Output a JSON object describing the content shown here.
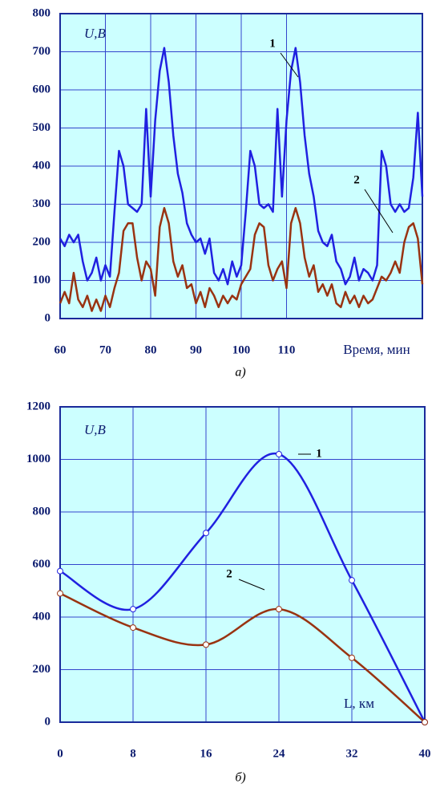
{
  "chart_data": [
    {
      "type": "line",
      "y_label": "U,В",
      "x_label": "Время, мин",
      "caption": "а)",
      "x": [
        60,
        61,
        62,
        63,
        64,
        65,
        66,
        67,
        68,
        69,
        70,
        71,
        72,
        73,
        74,
        75,
        76,
        77,
        78,
        79,
        80,
        81,
        82,
        83,
        84,
        85,
        86,
        87,
        88,
        89,
        90,
        91,
        92,
        93,
        94,
        95,
        96,
        97,
        98,
        99,
        100,
        101,
        102,
        103,
        104,
        105,
        106,
        107,
        108,
        109,
        110,
        111,
        112,
        113,
        114,
        115,
        116,
        117,
        118,
        119,
        120,
        121,
        122,
        123,
        124,
        125,
        126,
        127,
        128,
        129,
        130,
        131,
        132,
        133,
        134,
        135,
        136,
        137,
        138,
        139,
        140
      ],
      "series": [
        {
          "name": "1",
          "color": "#2020e0",
          "values": [
            210,
            190,
            220,
            200,
            220,
            150,
            100,
            120,
            160,
            100,
            140,
            110,
            280,
            440,
            400,
            300,
            290,
            280,
            300,
            550,
            320,
            520,
            650,
            710,
            620,
            480,
            380,
            330,
            250,
            220,
            200,
            210,
            170,
            210,
            120,
            100,
            130,
            90,
            150,
            110,
            140,
            280,
            440,
            400,
            300,
            290,
            300,
            280,
            550,
            320,
            520,
            650,
            710,
            620,
            480,
            380,
            320,
            230,
            200,
            190,
            220,
            150,
            130,
            90,
            110,
            160,
            100,
            130,
            120,
            100,
            140,
            440,
            400,
            300,
            280,
            300,
            280,
            290,
            370,
            540,
            320
          ]
        },
        {
          "name": "2",
          "color": "#993311",
          "values": [
            40,
            70,
            40,
            120,
            50,
            30,
            60,
            20,
            50,
            20,
            60,
            30,
            80,
            120,
            230,
            250,
            250,
            160,
            100,
            150,
            130,
            60,
            240,
            290,
            250,
            150,
            110,
            140,
            80,
            90,
            40,
            70,
            30,
            80,
            60,
            30,
            60,
            40,
            60,
            50,
            90,
            110,
            130,
            220,
            250,
            240,
            140,
            100,
            130,
            150,
            80,
            250,
            290,
            250,
            160,
            110,
            140,
            70,
            90,
            60,
            90,
            40,
            30,
            70,
            40,
            60,
            30,
            60,
            40,
            50,
            80,
            110,
            100,
            120,
            150,
            120,
            200,
            240,
            250,
            210,
            90
          ]
        }
      ],
      "xlim": [
        60,
        140
      ],
      "xticks": [
        60,
        70,
        80,
        90,
        100,
        110
      ],
      "ylim": [
        0,
        800
      ],
      "yticks": [
        0,
        100,
        200,
        300,
        400,
        500,
        600,
        700,
        800
      ],
      "grid": true,
      "markers": false
    },
    {
      "type": "line",
      "y_label": "U,В",
      "x_label": "L, км",
      "caption": "б)",
      "x": [
        0,
        8,
        16,
        24,
        32,
        40
      ],
      "series": [
        {
          "name": "1",
          "color": "#2020e0",
          "values": [
            575,
            430,
            720,
            1020,
            540,
            0
          ]
        },
        {
          "name": "2",
          "color": "#993311",
          "values": [
            490,
            360,
            295,
            430,
            245,
            0
          ]
        }
      ],
      "xlim": [
        0,
        40
      ],
      "xticks": [
        0,
        8,
        16,
        24,
        32,
        40
      ],
      "ylim": [
        0,
        1200
      ],
      "yticks": [
        0,
        200,
        400,
        600,
        800,
        1000,
        1200
      ],
      "grid": true,
      "markers": true
    }
  ]
}
